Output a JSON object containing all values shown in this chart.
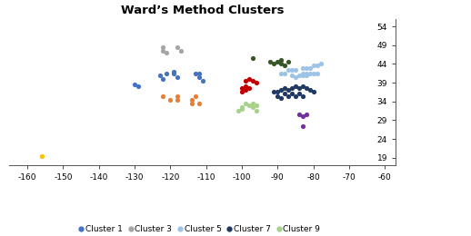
{
  "title": "Ward’s Method Clusters",
  "xlim": [
    -165,
    -57
  ],
  "ylim": [
    17,
    56
  ],
  "xticks": [
    -160,
    -150,
    -140,
    -130,
    -120,
    -110,
    -100,
    -90,
    -80,
    -70,
    -60
  ],
  "yticks": [
    19,
    24,
    29,
    34,
    39,
    44,
    49,
    54
  ],
  "clusters": {
    "Cluster 1": {
      "color": "#4472C4",
      "points": [
        [
          -122,
          40
        ],
        [
          -123,
          41
        ],
        [
          -121,
          41.5
        ],
        [
          -118,
          40.5
        ],
        [
          -119,
          41.5
        ],
        [
          -119,
          42
        ],
        [
          -113,
          41.5
        ],
        [
          -112,
          41.5
        ],
        [
          -112,
          40.5
        ],
        [
          -111,
          39.5
        ],
        [
          -130,
          38.5
        ],
        [
          -129,
          38
        ]
      ]
    },
    "Cluster 2": {
      "color": "#ED7D31",
      "points": [
        [
          -122,
          35.5
        ],
        [
          -120,
          34.5
        ],
        [
          -118,
          35.5
        ],
        [
          -118,
          34.5
        ],
        [
          -113,
          35.5
        ],
        [
          -114,
          34.5
        ],
        [
          -114,
          33.5
        ],
        [
          -112,
          33.5
        ]
      ]
    },
    "Cluster 3": {
      "color": "#A5A5A5",
      "points": [
        [
          -122,
          48.5
        ],
        [
          -122,
          47.5
        ],
        [
          -121,
          47
        ],
        [
          -118,
          48.5
        ],
        [
          -117,
          47.5
        ]
      ]
    },
    "Cluster 4": {
      "color": "#FFC000",
      "points": [
        [
          -156,
          19.5
        ]
      ]
    },
    "Cluster 5": {
      "color": "#9DC3E6",
      "points": [
        [
          -87,
          42.5
        ],
        [
          -86,
          42.5
        ],
        [
          -85,
          42.5
        ],
        [
          -83,
          43
        ],
        [
          -82,
          43
        ],
        [
          -81,
          43
        ],
        [
          -80,
          43.5
        ],
        [
          -79,
          43.5
        ],
        [
          -78,
          44
        ],
        [
          -83,
          41.5
        ],
        [
          -82,
          41.5
        ],
        [
          -81,
          41.5
        ],
        [
          -80,
          41.5
        ],
        [
          -79,
          41.5
        ],
        [
          -84,
          41
        ],
        [
          -83,
          41
        ],
        [
          -82,
          41
        ],
        [
          -86,
          41
        ],
        [
          -85,
          40.5
        ],
        [
          -88,
          41.5
        ],
        [
          -89,
          41.5
        ]
      ]
    },
    "Cluster 6": {
      "color": "#375623",
      "points": [
        [
          -97,
          45.5
        ],
        [
          -92,
          44.5
        ],
        [
          -91,
          44
        ],
        [
          -90,
          44.5
        ],
        [
          -89,
          44
        ],
        [
          -89,
          45
        ],
        [
          -88,
          43.5
        ],
        [
          -87,
          44.5
        ]
      ]
    },
    "Cluster 7": {
      "color": "#203864",
      "points": [
        [
          -90,
          36.5
        ],
        [
          -89,
          37
        ],
        [
          -88,
          37.5
        ],
        [
          -87,
          37
        ],
        [
          -86,
          37.5
        ],
        [
          -85,
          38
        ],
        [
          -84,
          37.5
        ],
        [
          -83,
          38
        ],
        [
          -82,
          37.5
        ],
        [
          -81,
          37
        ],
        [
          -88,
          36
        ],
        [
          -87,
          35.5
        ],
        [
          -86,
          36
        ],
        [
          -85,
          35.5
        ],
        [
          -84,
          36
        ],
        [
          -83,
          35.5
        ],
        [
          -90,
          35.5
        ],
        [
          -89,
          35
        ],
        [
          -91,
          36.5
        ],
        [
          -80,
          36.5
        ]
      ]
    },
    "Cluster 8": {
      "color": "#C00000",
      "points": [
        [
          -99,
          39.5
        ],
        [
          -98,
          40
        ],
        [
          -97,
          39.5
        ],
        [
          -96,
          39
        ],
        [
          -100,
          37.5
        ],
        [
          -99,
          38
        ],
        [
          -98,
          37.5
        ],
        [
          -100,
          36.5
        ],
        [
          -99,
          37
        ]
      ]
    },
    "Cluster 9": {
      "color": "#A9D18E",
      "points": [
        [
          -99,
          33.5
        ],
        [
          -98,
          33
        ],
        [
          -97,
          33.5
        ],
        [
          -100,
          32.5
        ],
        [
          -101,
          31.5
        ],
        [
          -100,
          32
        ],
        [
          -97,
          32.5
        ],
        [
          -96,
          33
        ],
        [
          -96,
          31.5
        ]
      ]
    },
    "Cluster 10": {
      "color": "#7030A0",
      "points": [
        [
          -84,
          30.5
        ],
        [
          -83,
          30
        ],
        [
          -82,
          30.5
        ],
        [
          -83,
          27.5
        ]
      ]
    }
  },
  "figsize": [
    5.18,
    2.6
  ],
  "dpi": 100,
  "title_fontsize": 9.5,
  "tick_fontsize": 6.5,
  "legend_fontsize": 6.5,
  "marker_size": 14,
  "background_color": "#FFFFFF"
}
